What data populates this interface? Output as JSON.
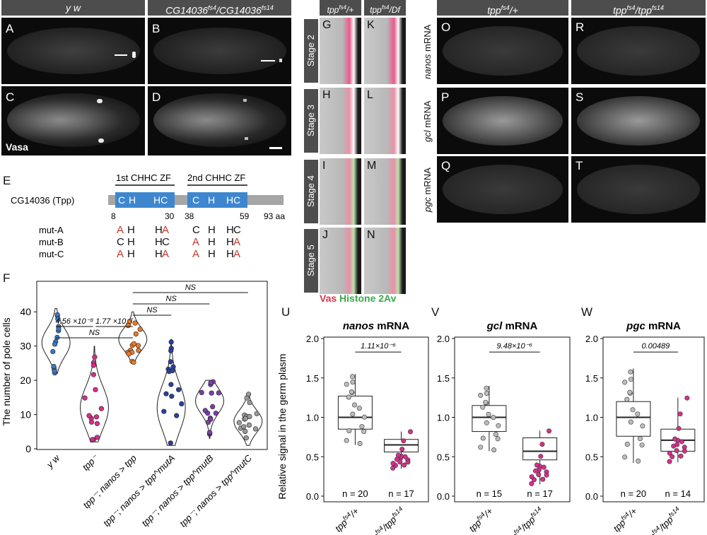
{
  "panelA_header": {
    "left": "y w",
    "right": "CG14036",
    "right_sup1": "fs4",
    "right_sep": "/CG14036",
    "right_sup2": "fs14"
  },
  "panel_letters_top": [
    "A",
    "B",
    "C",
    "D"
  ],
  "vasa_label": "Vasa",
  "panelE": {
    "letter": "E",
    "protein": "CG14036 (Tpp)",
    "zf1": "1st CHHC ZF",
    "zf2": "2nd CHHC ZF",
    "positions": [
      "8",
      "30",
      "38",
      "59",
      "93 aa"
    ],
    "wt_residues": [
      "C",
      "H",
      "HC",
      "C",
      "H",
      "HC"
    ],
    "mutants": [
      {
        "name": "mut-A",
        "r": [
          "A",
          "H",
          "H",
          "A",
          "C",
          "H",
          "H",
          "C"
        ]
      },
      {
        "name": "mut-B",
        "r": [
          "C",
          "H",
          "H",
          "C",
          "A",
          "H",
          "H",
          "A"
        ]
      },
      {
        "name": "mut-C",
        "r": [
          "A",
          "H",
          "H",
          "A",
          "A",
          "H",
          "H",
          "A"
        ]
      }
    ]
  },
  "stage_panel": {
    "col1": "tpp",
    "col1_sup": "fs4",
    "col1_tail": "/+",
    "col2": "tpp",
    "col2_sup": "fs4",
    "col2_tail": "/Df",
    "stages": [
      "Stage 2",
      "Stage 3",
      "Stage 4",
      "Stage 5"
    ],
    "letters_left": [
      "G",
      "H",
      "I",
      "J"
    ],
    "letters_right": [
      "K",
      "L",
      "M",
      "N"
    ],
    "legend_vas": "Vas",
    "legend_histone": "Histone 2Av"
  },
  "mrna_panel": {
    "col1": "tpp",
    "col1_sup": "fs4",
    "col1_tail": "/+",
    "col2": "tpp",
    "col2_sup": "fs4",
    "col2_mid": "/tpp",
    "col2_sup2": "fs14",
    "rows": [
      {
        "gene": "nanos",
        "suffix": " mRNA",
        "l": "O",
        "r": "R"
      },
      {
        "gene": "gcl",
        "suffix": " mRNA",
        "l": "P",
        "r": "S"
      },
      {
        "gene": "pgc",
        "suffix": " mRNA",
        "l": "Q",
        "r": "T"
      }
    ]
  },
  "chart_data": [
    {
      "panel": "F",
      "type": "violin",
      "ylabel": "The number of pole cells",
      "ylim": [
        0,
        45
      ],
      "yticks": [
        0,
        10,
        20,
        30,
        40
      ],
      "categories": [
        "y w",
        "tpp⁻",
        "tpp⁻; nanos > tpp",
        "tpp⁻; nanos > tpp^mutA",
        "tpp⁻; nanos > tpp^mutB",
        "tpp⁻; nanos > tpp^mutC"
      ],
      "colors": [
        "#3a78c2",
        "#d62f8c",
        "#e8792a",
        "#2a3f9e",
        "#7a3fa8",
        "#9a9a9a"
      ],
      "medians": [
        31,
        12,
        32,
        12,
        14,
        8
      ],
      "ranges": [
        [
          22,
          41
        ],
        [
          2,
          30
        ],
        [
          25,
          40
        ],
        [
          1,
          32
        ],
        [
          3,
          20
        ],
        [
          1,
          16
        ]
      ],
      "comparisons": [
        {
          "a": 0,
          "b": 1,
          "label": "4.56 ×10⁻⁸"
        },
        {
          "a": 1,
          "b": 2,
          "label": "1.77 ×10⁻⁷"
        },
        {
          "a": 0,
          "b": 2,
          "label": "NS"
        },
        {
          "a": 2,
          "b": 3,
          "label": "NS"
        },
        {
          "a": 2,
          "b": 4,
          "label": "NS"
        },
        {
          "a": 2,
          "b": 5,
          "label": "NS"
        }
      ]
    },
    {
      "panel": "U",
      "type": "box",
      "title": "nanos mRNA",
      "ylabel": "Relative signal in the germ plasm",
      "ylim": [
        0,
        2.0
      ],
      "yticks": [
        0,
        0.5,
        1.0,
        1.5,
        2.0
      ],
      "pvalue": "1.11×10⁻⁶",
      "groups": [
        {
          "name": "tpp^fs4/+",
          "n": "n = 20",
          "q1": 0.85,
          "median": 1.0,
          "q3": 1.27,
          "min": 0.65,
          "max": 1.55,
          "color": "#bdbdbd"
        },
        {
          "name": "tpp^fs4/tpp^fs14",
          "n": "n = 17",
          "q1": 0.56,
          "median": 0.65,
          "q3": 0.72,
          "min": 0.35,
          "max": 0.82,
          "color": "#d62f8c"
        }
      ]
    },
    {
      "panel": "V",
      "type": "box",
      "title": "gcl mRNA",
      "ylim": [
        0,
        2.0
      ],
      "yticks": [
        0,
        0.5,
        1.0,
        1.5,
        2.0
      ],
      "pvalue": "9.48×10⁻⁶",
      "groups": [
        {
          "name": "tpp^fs4/+",
          "n": "n = 15",
          "q1": 0.82,
          "median": 1.0,
          "q3": 1.15,
          "min": 0.57,
          "max": 1.4,
          "color": "#bdbdbd"
        },
        {
          "name": "tpp^fs4/tpp^fs14",
          "n": "n = 17",
          "q1": 0.46,
          "median": 0.57,
          "q3": 0.74,
          "min": 0.15,
          "max": 0.83,
          "color": "#d62f8c"
        }
      ]
    },
    {
      "panel": "W",
      "type": "box",
      "title": "pgc mRNA",
      "ylim": [
        0,
        2.0
      ],
      "yticks": [
        0,
        0.5,
        1.0,
        1.5,
        2.0
      ],
      "pvalue": "0.00489",
      "groups": [
        {
          "name": "tpp^fs4/+",
          "n": "n = 20",
          "q1": 0.76,
          "median": 1.0,
          "q3": 1.2,
          "min": 0.42,
          "max": 1.62,
          "color": "#bdbdbd"
        },
        {
          "name": "tpp^fs4/tpp^fs14",
          "n": "n = 14",
          "q1": 0.57,
          "median": 0.71,
          "q3": 0.85,
          "min": 0.43,
          "max": 1.25,
          "color": "#d62f8c"
        }
      ]
    }
  ]
}
